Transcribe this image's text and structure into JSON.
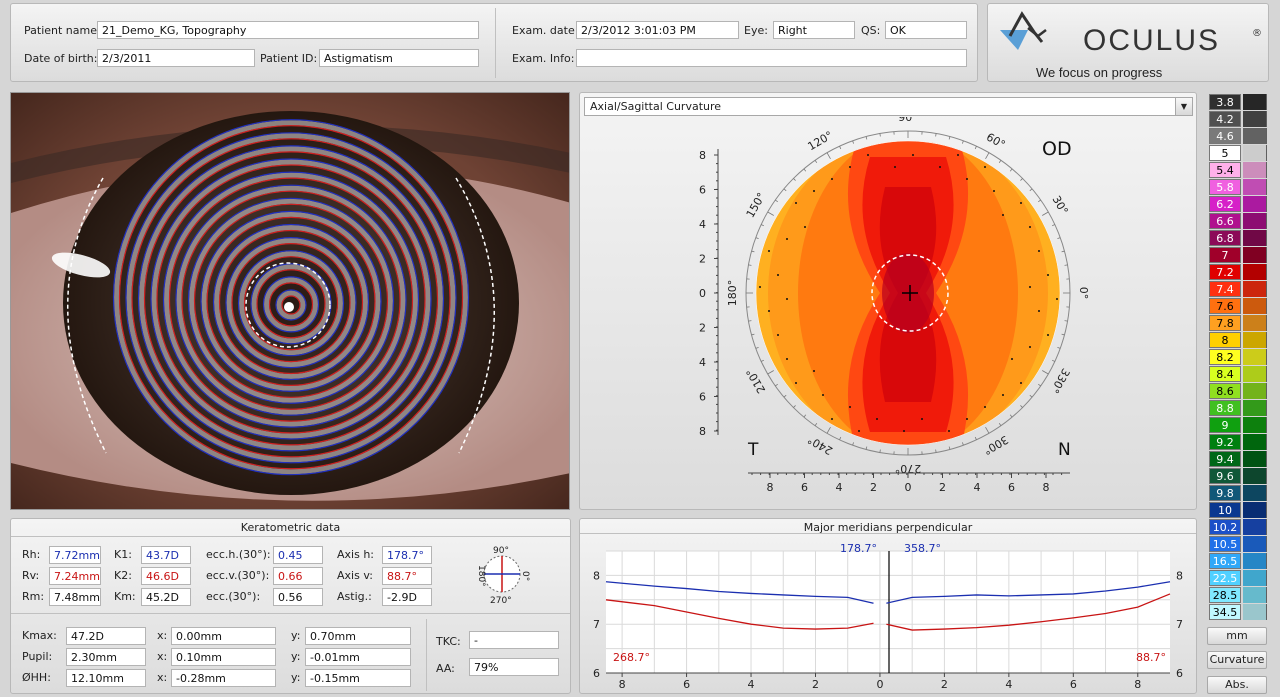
{
  "header": {
    "patient_name_label": "Patient name:",
    "patient_name": "21_Demo_KG, Topography",
    "dob_label": "Date of birth:",
    "dob": "2/3/2011",
    "patient_id_label": "Patient ID:",
    "patient_id": "Astigmatism",
    "exam_date_label": "Exam. date:",
    "exam_date": "2/3/2012 3:01:03 PM",
    "eye_label": "Eye:",
    "eye": "Right",
    "qs_label": "QS:",
    "qs": "OK",
    "exam_info_label": "Exam. Info:",
    "exam_info": ""
  },
  "logo": {
    "brand": "OCULUS",
    "registered": "®",
    "tagline": "We focus on progress"
  },
  "map": {
    "dropdown": "Axial/Sagittal Curvature",
    "eye_label": "OD",
    "temporal_label": "T",
    "nasal_label": "N",
    "angles": [
      "90°",
      "60°",
      "30°",
      "0°",
      "330°",
      "300°",
      "270°",
      "240°",
      "210°",
      "180°",
      "150°",
      "120°"
    ],
    "axis_ticks_y": [
      "8",
      "6",
      "4",
      "2",
      "0",
      "2",
      "4",
      "6",
      "8"
    ],
    "axis_ticks_x": [
      "8",
      "6",
      "4",
      "2",
      "0",
      "2",
      "4",
      "6",
      "8"
    ]
  },
  "color_scale": {
    "values": [
      "3.8",
      "4.2",
      "4.6",
      "5",
      "5.4",
      "5.8",
      "6.2",
      "6.6",
      "6.8",
      "7",
      "7.2",
      "7.4",
      "7.6",
      "7.8",
      "8",
      "8.2",
      "8.4",
      "8.6",
      "8.8",
      "9",
      "9.2",
      "9.4",
      "9.6",
      "9.8",
      "10",
      "10.2",
      "10.5",
      "16.5",
      "22.5",
      "28.5",
      "34.5"
    ],
    "colors": [
      "#303030",
      "#505050",
      "#7a7a7a",
      "#ffffff",
      "#ffb0ea",
      "#f060e0",
      "#d620c8",
      "#b0108e",
      "#8c0a58",
      "#a0002a",
      "#e00000",
      "#ff3010",
      "#ff7010",
      "#ffa020",
      "#ffd000",
      "#ffff20",
      "#d8ff20",
      "#90e020",
      "#40c020",
      "#10a010",
      "#008010",
      "#006818",
      "#105838",
      "#105878",
      "#0a3890",
      "#1c50c8",
      "#2070e8",
      "#30a8f8",
      "#50d0ff",
      "#80e8ff",
      "#c0f8ff"
    ],
    "text_colors": [
      "#ffffff",
      "#ffffff",
      "#ffffff",
      "#000000",
      "#000000",
      "#ffffff",
      "#ffffff",
      "#ffffff",
      "#ffffff",
      "#ffffff",
      "#ffffff",
      "#ffffff",
      "#000000",
      "#000000",
      "#000000",
      "#000000",
      "#000000",
      "#000000",
      "#ffffff",
      "#ffffff",
      "#ffffff",
      "#ffffff",
      "#ffffff",
      "#ffffff",
      "#ffffff",
      "#ffffff",
      "#ffffff",
      "#ffffff",
      "#ffffff",
      "#000000",
      "#000000"
    ],
    "unit_button": "mm",
    "mode_button": "Curvature",
    "abs_button": "Abs."
  },
  "kerato": {
    "title": "Keratometric data",
    "rh_label": "Rh:",
    "rh": "7.72mm",
    "rv_label": "Rv:",
    "rv": "7.24mm",
    "rm_label": "Rm:",
    "rm": "7.48mm",
    "k1_label": "K1:",
    "k1": "43.7D",
    "k2_label": "K2:",
    "k2": "46.6D",
    "km_label": "Km:",
    "km": "45.2D",
    "ecch_label": "ecc.h.(30°):",
    "ecch": "0.45",
    "eccv_label": "ecc.v.(30°):",
    "eccv": "0.66",
    "ecc_label": "ecc.(30°):",
    "ecc": "0.56",
    "axish_label": "Axis h:",
    "axish": "178.7°",
    "axisv_label": "Axis v:",
    "axisv": "88.7°",
    "astig_label": "Astig.:",
    "astig": "-2.9D",
    "dial_top": "90°",
    "dial_bottom": "270°",
    "dial_left": "180°",
    "dial_right": "0°",
    "kmax_label": "Kmax:",
    "kmax": "47.2D",
    "kmax_x_label": "x:",
    "kmax_x": "0.00mm",
    "kmax_y_label": "y:",
    "kmax_y": "0.70mm",
    "pupil_label": "Pupil:",
    "pupil": "2.30mm",
    "pupil_x_label": "x:",
    "pupil_x": "0.10mm",
    "pupil_y_label": "y:",
    "pupil_y": "-0.01mm",
    "hh_label": "ØHH:",
    "hh": "12.10mm",
    "hh_x_label": "x:",
    "hh_x": "-0.28mm",
    "hh_y_label": "y:",
    "hh_y": "-0.15mm",
    "tkc_label": "TKC:",
    "tkc": "-",
    "aa_label": "AA:",
    "aa": "79%"
  },
  "meridians": {
    "title": "Major meridians perpendicular",
    "label_top_left": "178.7°",
    "label_top_right": "358.7°",
    "label_bottom_left": "268.7°",
    "label_bottom_right": "88.7°"
  },
  "chart_data": {
    "type": "line",
    "title": "Major meridians perpendicular",
    "x_ticks": [
      "8",
      "6",
      "4",
      "2",
      "0",
      "2",
      "4",
      "6",
      "8"
    ],
    "y_ticks": [
      "6",
      "7",
      "8"
    ],
    "ylim": [
      6,
      8.5
    ],
    "xlim": [
      -8.5,
      9
    ],
    "series": [
      {
        "name": "178.7°",
        "color": "#1b2fb0",
        "left": {
          "x": [
            -8.5,
            -7,
            -6,
            -5,
            -4,
            -3,
            -2,
            -1,
            -0.2
          ],
          "y": [
            7.87,
            7.78,
            7.73,
            7.67,
            7.63,
            7.6,
            7.57,
            7.55,
            7.43
          ]
        },
        "right": {
          "x": [
            0.2,
            1,
            2,
            3,
            4,
            5,
            6,
            7,
            8,
            9
          ],
          "y": [
            7.43,
            7.55,
            7.57,
            7.6,
            7.58,
            7.6,
            7.62,
            7.68,
            7.76,
            7.87
          ]
        }
      },
      {
        "name": "268.7°",
        "color": "#c81414",
        "left": {
          "x": [
            -8.5,
            -7,
            -6,
            -5,
            -4,
            -3,
            -2,
            -1,
            -0.2
          ],
          "y": [
            7.5,
            7.38,
            7.25,
            7.12,
            7.0,
            6.92,
            6.9,
            6.92,
            7.02
          ]
        },
        "right": {
          "x": [
            0.2,
            1,
            2,
            3,
            4,
            5,
            6,
            7,
            8,
            9
          ],
          "y": [
            7.0,
            6.88,
            6.9,
            6.93,
            6.98,
            7.05,
            7.13,
            7.22,
            7.35,
            7.62
          ]
        }
      }
    ]
  }
}
